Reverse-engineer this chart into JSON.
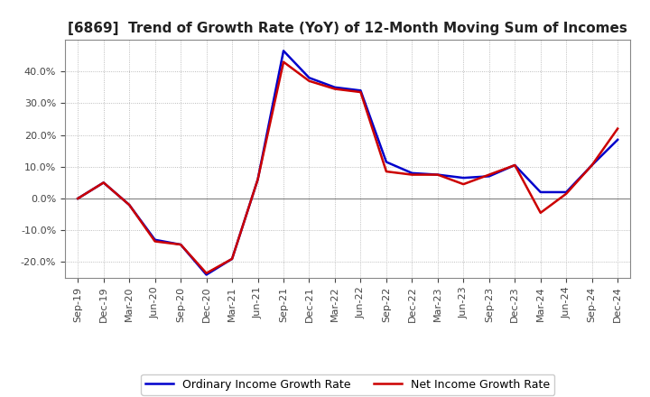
{
  "title": "[6869]  Trend of Growth Rate (YoY) of 12-Month Moving Sum of Incomes",
  "x_labels": [
    "Sep-19",
    "Dec-19",
    "Mar-20",
    "Jun-20",
    "Sep-20",
    "Dec-20",
    "Mar-21",
    "Jun-21",
    "Sep-21",
    "Dec-21",
    "Mar-22",
    "Jun-22",
    "Sep-22",
    "Dec-22",
    "Mar-23",
    "Jun-23",
    "Sep-23",
    "Dec-23",
    "Mar-24",
    "Jun-24",
    "Sep-24",
    "Dec-24"
  ],
  "ordinary_income": [
    0.0,
    5.0,
    -2.0,
    -13.0,
    -14.5,
    -24.0,
    -19.0,
    6.0,
    46.5,
    38.0,
    35.0,
    34.0,
    11.5,
    8.0,
    7.5,
    6.5,
    7.0,
    10.5,
    2.0,
    2.0,
    10.5,
    18.5
  ],
  "net_income": [
    0.0,
    5.0,
    -2.0,
    -13.5,
    -14.5,
    -23.5,
    -19.0,
    6.0,
    43.0,
    37.0,
    34.5,
    33.5,
    8.5,
    7.5,
    7.5,
    4.5,
    7.5,
    10.5,
    -4.5,
    1.5,
    10.5,
    22.0
  ],
  "ordinary_color": "#0000cc",
  "net_color": "#cc0000",
  "ylim": [
    -25,
    50
  ],
  "yticks": [
    -20,
    -10,
    0,
    10,
    20,
    30,
    40
  ],
  "background_color": "#ffffff",
  "plot_bg_color": "#ffffff",
  "grid_color": "#aaaaaa",
  "zero_line_color": "#888888",
  "spine_color": "#888888",
  "legend_ordinary": "Ordinary Income Growth Rate",
  "legend_net": "Net Income Growth Rate",
  "title_fontsize": 11,
  "tick_fontsize": 8,
  "legend_fontsize": 9
}
